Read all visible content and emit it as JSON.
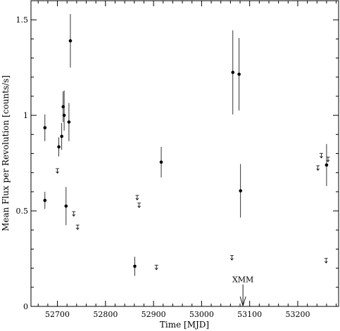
{
  "chart_data": {
    "type": "scatter",
    "xlabel": "Time [MJD]",
    "ylabel": "Mean Flux per Revolution [counts/s]",
    "xlim": [
      52645,
      53285
    ],
    "ylim": [
      0,
      1.6
    ],
    "x_ticks": [
      52700,
      52800,
      52900,
      53000,
      53100,
      53200
    ],
    "y_ticks": [
      0,
      0.5,
      1,
      1.5
    ],
    "y_tick_labels": [
      "0",
      "0.5",
      "1",
      "1.5"
    ],
    "grid": false,
    "detections": [
      {
        "x": 52674,
        "y": 0.935,
        "err_lo": 0.07,
        "err_hi": 0.07
      },
      {
        "x": 52674,
        "y": 0.555,
        "err_lo": 0.045,
        "err_hi": 0.045
      },
      {
        "x": 52703,
        "y": 0.835,
        "err_lo": 0.05,
        "err_hi": 0.05
      },
      {
        "x": 52709,
        "y": 0.89,
        "err_lo": 0.07,
        "err_hi": 0.07
      },
      {
        "x": 52712,
        "y": 1.045,
        "err_lo": 0.08,
        "err_hi": 0.08
      },
      {
        "x": 52714,
        "y": 1.0,
        "err_lo": 0.08,
        "err_hi": 0.13
      },
      {
        "x": 52718,
        "y": 0.525,
        "err_lo": 0.1,
        "err_hi": 0.1
      },
      {
        "x": 52724,
        "y": 0.965,
        "err_lo": 0.1,
        "err_hi": 0.1
      },
      {
        "x": 52727,
        "y": 1.39,
        "err_lo": 0.14,
        "err_hi": 0.14
      },
      {
        "x": 52861,
        "y": 0.21,
        "err_lo": 0.05,
        "err_hi": 0.05
      },
      {
        "x": 52916,
        "y": 0.755,
        "err_lo": 0.08,
        "err_hi": 0.08
      },
      {
        "x": 53065,
        "y": 1.225,
        "err_lo": 0.22,
        "err_hi": 0.22
      },
      {
        "x": 53078,
        "y": 1.215,
        "err_lo": 0.19,
        "err_hi": 0.19
      },
      {
        "x": 53081,
        "y": 0.605,
        "err_lo": 0.14,
        "err_hi": 0.14
      },
      {
        "x": 53260,
        "y": 0.74,
        "err_lo": 0.11,
        "err_hi": 0.11
      }
    ],
    "upper_limits": [
      {
        "x": 52700,
        "y": 0.71
      },
      {
        "x": 52734,
        "y": 0.485
      },
      {
        "x": 52742,
        "y": 0.415
      },
      {
        "x": 52866,
        "y": 0.57
      },
      {
        "x": 52870,
        "y": 0.53
      },
      {
        "x": 52906,
        "y": 0.205
      },
      {
        "x": 53063,
        "y": 0.255
      },
      {
        "x": 53242,
        "y": 0.725
      },
      {
        "x": 53249,
        "y": 0.79
      },
      {
        "x": 53259,
        "y": 0.24
      },
      {
        "x": 53263,
        "y": 0.77
      }
    ],
    "annotations": [
      {
        "text": "XMM",
        "x": 53086,
        "arrow_from_y": 0.115,
        "arrow_to_y": 0.0
      }
    ]
  }
}
